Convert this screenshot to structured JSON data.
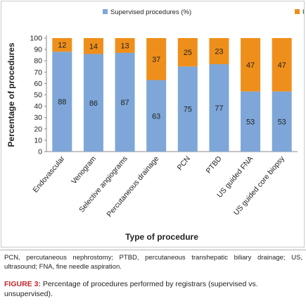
{
  "chart_data": {
    "type": "bar",
    "stacked": true,
    "categories": [
      "Endovascular",
      "Venogram",
      "Selective angiograms",
      "Percutaneous drainage",
      "PCN",
      "PTBD",
      "US guided FNA",
      "US guided core biopsy"
    ],
    "series": [
      {
        "name": "Supervised procedures (%)",
        "values": [
          88,
          86,
          87,
          63,
          75,
          77,
          53,
          53
        ],
        "color": "#7ea6d8"
      },
      {
        "name": "Unsupervised procedures (%)",
        "values": [
          12,
          14,
          13,
          37,
          25,
          23,
          47,
          47
        ],
        "color": "#ef8f1b"
      }
    ],
    "xlabel": "Type of procedure",
    "ylabel": "Percentage of procedures",
    "ylim": [
      0,
      100
    ],
    "yticks": [
      "0",
      "10",
      "20",
      "30",
      "40",
      "50",
      "60",
      "70",
      "80",
      "90",
      "100"
    ],
    "grid": false,
    "legend": "top"
  },
  "footnote": "PCN, percutaneous nephrostomy; PTBD, percutaneous transhepatic biliary drainage; US, ultrasound; FNA, fine needle aspiration.",
  "caption": {
    "label": "FIGURE 3:",
    "text": " Percentage of procedures performed by registrars (supervised vs. unsupervised)."
  }
}
